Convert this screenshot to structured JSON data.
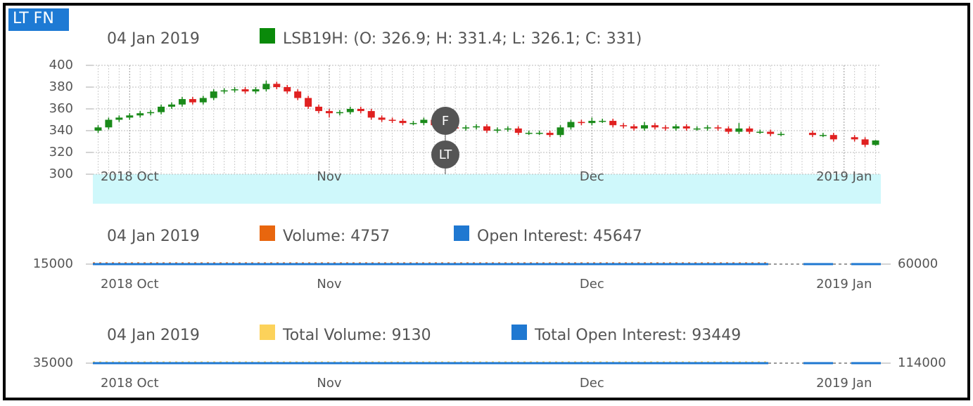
{
  "header": {
    "badge": "LT FN"
  },
  "chart_data": [
    {
      "type": "candlestick",
      "date": "04 Jan 2019",
      "legend": {
        "text": "LSB19H: (O: 326.9; H: 331.4; L: 326.1; C: 331)",
        "color": "#0a8a0a"
      },
      "up_color": "#1a8a1a",
      "down_color": "#e02020",
      "band_color": "#cff8fb",
      "annotations": [
        "F",
        "LT"
      ],
      "categories": [
        null,
        null,
        null,
        "2018 Oct",
        null,
        null,
        null,
        null,
        null,
        null,
        null,
        null,
        null,
        null,
        null,
        null,
        null,
        null,
        null,
        null,
        null,
        null,
        "Nov",
        null,
        null,
        null,
        null,
        null,
        null,
        null,
        null,
        null,
        null,
        null,
        null,
        null,
        null,
        null,
        null,
        null,
        null,
        null,
        null,
        null,
        null,
        null,
        null,
        "Dec",
        null,
        null,
        null,
        null,
        null,
        null,
        null,
        null,
        null,
        null,
        null,
        null,
        null,
        null,
        null,
        null,
        null,
        null,
        null,
        null,
        null,
        null,
        null,
        "2019 Jan",
        null,
        null,
        null
      ],
      "open": [
        340,
        343,
        350,
        352,
        354,
        356,
        357,
        362,
        364,
        369,
        366,
        370,
        376,
        377,
        378,
        376,
        378,
        383,
        380,
        376,
        370,
        362,
        358,
        356,
        357,
        360,
        358,
        352,
        350,
        349,
        347,
        347,
        350,
        345,
        343,
        342,
        343,
        344,
        340,
        341,
        342,
        338,
        338,
        338,
        336,
        343,
        348,
        347,
        349,
        349,
        345,
        344,
        342,
        345,
        343,
        342,
        344,
        342,
        342,
        343,
        342,
        339,
        342,
        339,
        339,
        337,
        null,
        null,
        338,
        336,
        336,
        null,
        334,
        332,
        326.9
      ],
      "high": [
        345,
        352,
        354,
        356,
        358,
        359,
        364,
        366,
        371,
        371,
        372,
        378,
        379,
        380,
        380,
        380,
        386,
        385,
        382,
        378,
        372,
        364,
        360,
        359,
        362,
        362,
        360,
        354,
        352,
        351,
        349,
        352,
        352,
        347,
        345,
        345,
        346,
        346,
        343,
        344,
        344,
        340,
        340,
        340,
        345,
        350,
        350,
        352,
        351,
        351,
        347,
        346,
        348,
        347,
        345,
        346,
        346,
        344,
        345,
        345,
        344,
        347,
        344,
        341,
        341,
        339,
        null,
        null,
        340,
        338,
        338,
        null,
        336,
        334,
        331.4
      ],
      "low": [
        338,
        341,
        348,
        350,
        352,
        354,
        355,
        360,
        362,
        364,
        364,
        368,
        374,
        375,
        374,
        374,
        376,
        378,
        374,
        368,
        360,
        356,
        352,
        354,
        355,
        356,
        350,
        348,
        347,
        345,
        345,
        345,
        343,
        341,
        340,
        340,
        341,
        338,
        338,
        339,
        336,
        336,
        336,
        334,
        334,
        341,
        345,
        345,
        347,
        343,
        342,
        340,
        340,
        341,
        340,
        340,
        340,
        340,
        340,
        340,
        337,
        337,
        337,
        337,
        335,
        335,
        null,
        null,
        334,
        334,
        330,
        null,
        330,
        325,
        326.1
      ],
      "close": [
        343,
        350,
        352,
        354,
        356,
        357,
        362,
        364,
        369,
        366,
        370,
        376,
        377,
        378,
        376,
        378,
        383,
        380,
        376,
        370,
        362,
        358,
        356,
        357,
        360,
        358,
        352,
        350,
        349,
        347,
        347,
        350,
        345,
        343,
        342,
        343,
        344,
        340,
        341,
        342,
        338,
        338,
        338,
        336,
        343,
        348,
        347,
        349,
        349,
        345,
        344,
        342,
        345,
        343,
        342,
        344,
        342,
        342,
        343,
        342,
        339,
        342,
        339,
        339,
        337,
        337,
        null,
        null,
        336,
        336,
        332,
        null,
        332,
        327,
        331
      ],
      "ylim": [
        300,
        400
      ],
      "yticks": [
        300,
        320,
        340,
        360,
        380,
        400
      ],
      "grid": true
    },
    {
      "type": "flat",
      "date": "04 Jan 2019",
      "legend": [
        {
          "text": "Volume: 4757",
          "color": "#e8660e"
        },
        {
          "text": "Open Interest: 45647",
          "color": "#1f78d1"
        }
      ],
      "categories": [
        null,
        null,
        null,
        "2018 Oct",
        null,
        null,
        null,
        null,
        null,
        null,
        null,
        null,
        null,
        null,
        null,
        null,
        null,
        null,
        null,
        null,
        null,
        null,
        "Nov",
        null,
        null,
        null,
        null,
        null,
        null,
        null,
        null,
        null,
        null,
        null,
        null,
        null,
        null,
        null,
        null,
        null,
        null,
        null,
        null,
        null,
        null,
        null,
        null,
        "Dec",
        null,
        null,
        null,
        null,
        null,
        null,
        null,
        null,
        null,
        null,
        null,
        null,
        null,
        null,
        null,
        null,
        null,
        null,
        null,
        null,
        null,
        null,
        null,
        "2019 Jan",
        null,
        null,
        null
      ],
      "yticks": [
        15000
      ],
      "y2ticks": [
        60000
      ]
    },
    {
      "type": "flat",
      "date": "04 Jan 2019",
      "legend": [
        {
          "text": "Total Volume: 9130",
          "color": "#fcd25a"
        },
        {
          "text": "Total Open Interest: 93449",
          "color": "#1f78d1"
        }
      ],
      "categories": [
        null,
        null,
        null,
        "2018 Oct",
        null,
        null,
        null,
        null,
        null,
        null,
        null,
        null,
        null,
        null,
        null,
        null,
        null,
        null,
        null,
        null,
        null,
        null,
        "Nov",
        null,
        null,
        null,
        null,
        null,
        null,
        null,
        null,
        null,
        null,
        null,
        null,
        null,
        null,
        null,
        null,
        null,
        null,
        null,
        null,
        null,
        null,
        null,
        null,
        "Dec",
        null,
        null,
        null,
        null,
        null,
        null,
        null,
        null,
        null,
        null,
        null,
        null,
        null,
        null,
        null,
        null,
        null,
        null,
        null,
        null,
        null,
        null,
        null,
        "2019 Jan",
        null,
        null,
        null
      ],
      "yticks": [
        35000
      ],
      "y2ticks": [
        114000
      ]
    }
  ]
}
